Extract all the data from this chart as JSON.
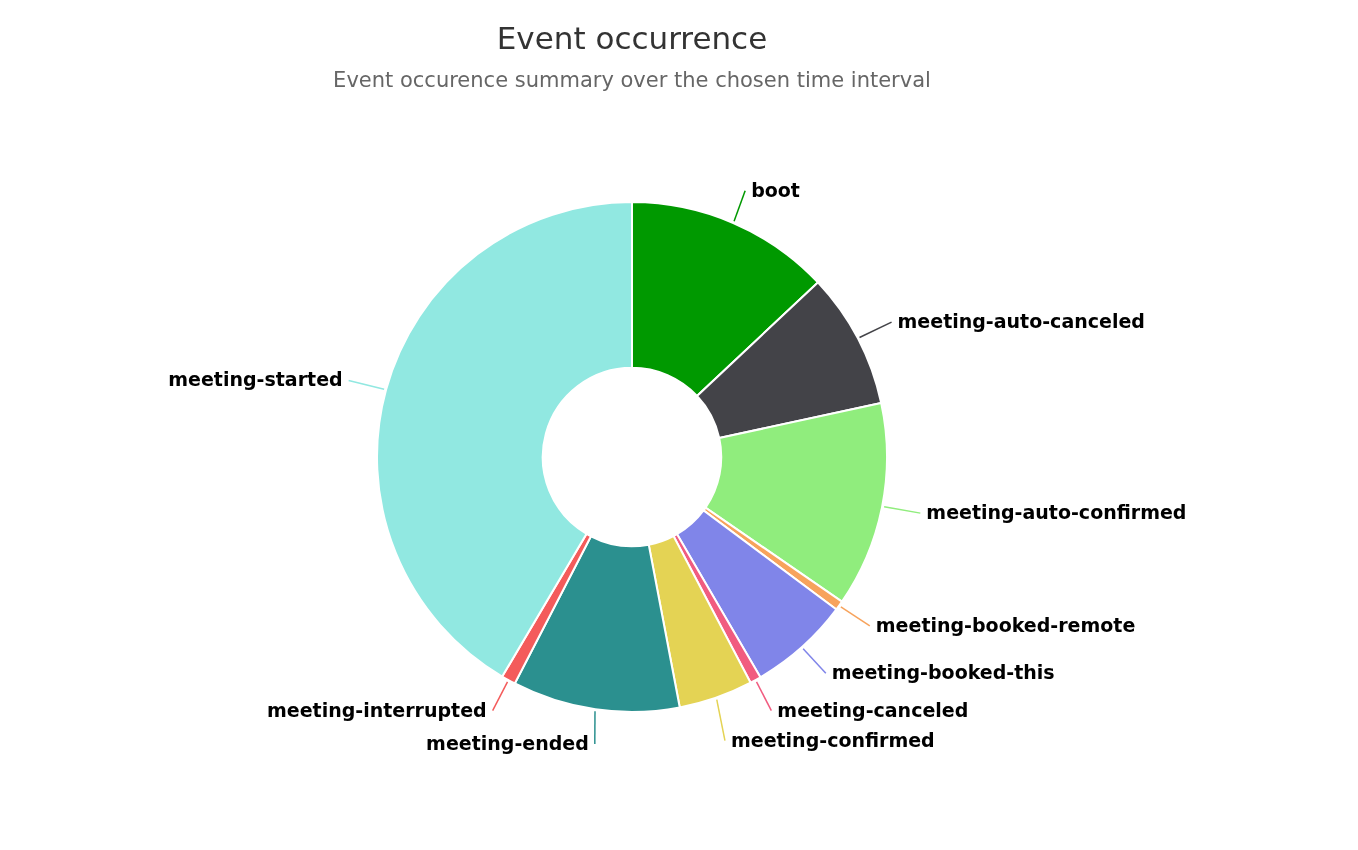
{
  "chart_data": {
    "type": "donut",
    "title": "Event occurrence",
    "subtitle": "Event occurence summary over the chosen time interval",
    "categories": [
      "boot",
      "meeting-auto-canceled",
      "meeting-auto-confirmed",
      "meeting-booked-remote",
      "meeting-booked-this",
      "meeting-canceled",
      "meeting-confirmed",
      "meeting-ended",
      "meeting-interrupted",
      "meeting-started"
    ],
    "values": [
      13,
      8.6,
      13,
      0.6,
      6.4,
      0.7,
      4.7,
      10.6,
      0.9,
      41.5
    ],
    "colors": [
      "#009900",
      "#434348",
      "#90ed7d",
      "#f7a35c",
      "#8085e9",
      "#f15c80",
      "#e4d354",
      "#2b908f",
      "#f45b5b",
      "#91e8e1"
    ]
  }
}
